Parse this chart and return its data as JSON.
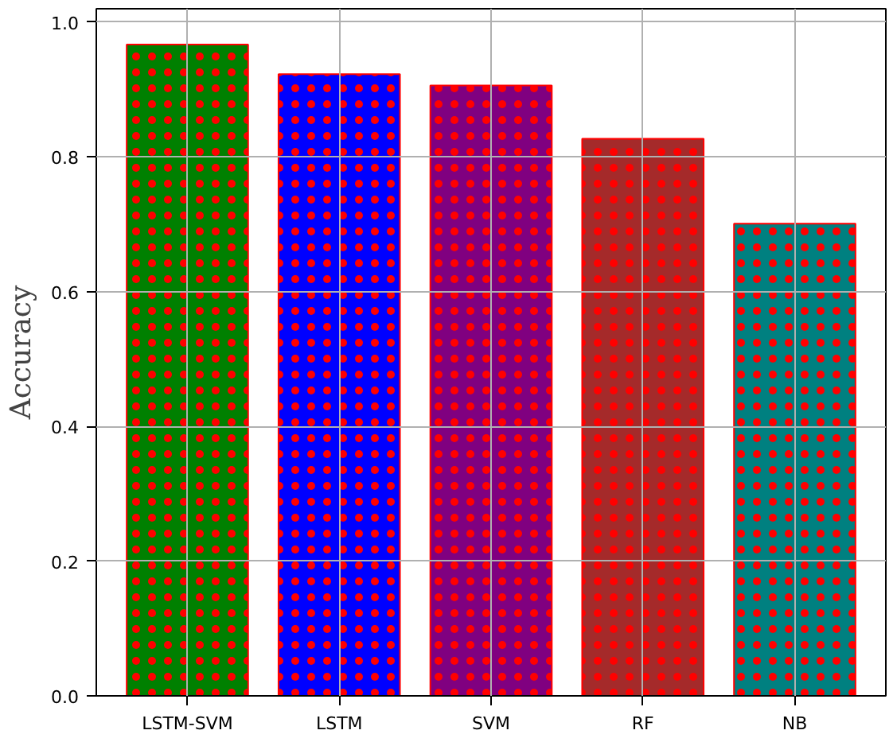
{
  "chart_data": {
    "type": "bar",
    "ylabel": "Accuracy",
    "categories": [
      "LSTM-SVM",
      "LSTM",
      "SVM",
      "RF",
      "NB"
    ],
    "values": [
      0.967,
      0.923,
      0.906,
      0.827,
      0.701
    ],
    "colors": [
      "#008000",
      "#0000ff",
      "#800080",
      "#a52a2a",
      "#008080"
    ],
    "ylim": [
      0,
      1.02
    ],
    "yticks": [
      {
        "value": 0,
        "label": "0.0"
      },
      0.2,
      0.4,
      0.6,
      0.8,
      {
        "value": 1,
        "label": "1.0"
      }
    ],
    "grid": true
  }
}
